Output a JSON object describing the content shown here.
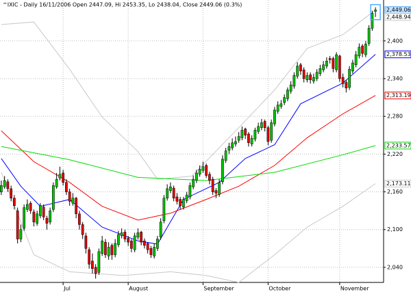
{
  "chart_data": {
    "type": "candlestick",
    "title": "^IXIC - Daily 16/11/2006 Open 2447.09, Hi 2453.35, Lo 2438.04, Close 2449.06 (0.3%)",
    "ylim": [
      2016,
      2465
    ],
    "xlim": [
      -0.4,
      117.5
    ],
    "yticks": [
      {
        "value": 2400,
        "label": "2,400"
      },
      {
        "value": 2340,
        "label": "2,340"
      },
      {
        "value": 2280,
        "label": "2,280"
      },
      {
        "value": 2220,
        "label": "2,220"
      },
      {
        "value": 2160,
        "label": "2,160"
      },
      {
        "value": 2100,
        "label": "2,100"
      },
      {
        "value": 2040,
        "label": "2,040"
      }
    ],
    "xticks": [
      {
        "value": 19,
        "label": "Jul"
      },
      {
        "value": 39,
        "label": "August"
      },
      {
        "value": 62,
        "label": "September"
      },
      {
        "value": 82,
        "label": "October"
      },
      {
        "value": 104,
        "label": "November"
      }
    ],
    "grid": true,
    "up_color": "#00c000",
    "down_color": "#e00000",
    "close_label": "2,449.06",
    "candles": [
      [
        2160,
        2178,
        2155,
        2170
      ],
      [
        2168,
        2185,
        2165,
        2178
      ],
      [
        2176,
        2180,
        2160,
        2165
      ],
      [
        2165,
        2170,
        2145,
        2150
      ],
      [
        2150,
        2155,
        2132,
        2138
      ],
      [
        2130,
        2135,
        2078,
        2085
      ],
      [
        2085,
        2108,
        2080,
        2100
      ],
      [
        2102,
        2140,
        2098,
        2135
      ],
      [
        2132,
        2148,
        2128,
        2140
      ],
      [
        2142,
        2145,
        2125,
        2130
      ],
      [
        2128,
        2132,
        2105,
        2112
      ],
      [
        2110,
        2130,
        2106,
        2125
      ],
      [
        2122,
        2142,
        2118,
        2138
      ],
      [
        2136,
        2140,
        2115,
        2120
      ],
      [
        2118,
        2122,
        2100,
        2110
      ],
      [
        2112,
        2135,
        2108,
        2130
      ],
      [
        2132,
        2175,
        2128,
        2170
      ],
      [
        2168,
        2190,
        2165,
        2180
      ],
      [
        2182,
        2200,
        2178,
        2188
      ],
      [
        2190,
        2195,
        2170,
        2175
      ],
      [
        2175,
        2180,
        2155,
        2160
      ],
      [
        2160,
        2165,
        2138,
        2145
      ],
      [
        2142,
        2158,
        2138,
        2150
      ],
      [
        2150,
        2152,
        2118,
        2125
      ],
      [
        2125,
        2130,
        2100,
        2108
      ],
      [
        2108,
        2112,
        2085,
        2092
      ],
      [
        2090,
        2095,
        2062,
        2070
      ],
      [
        2068,
        2072,
        2038,
        2045
      ],
      [
        2050,
        2062,
        2030,
        2038
      ],
      [
        2040,
        2045,
        2022,
        2030
      ],
      [
        2032,
        2070,
        2028,
        2065
      ],
      [
        2062,
        2090,
        2058,
        2082
      ],
      [
        2080,
        2085,
        2055,
        2060
      ],
      [
        2058,
        2080,
        2052,
        2072
      ],
      [
        2075,
        2078,
        2052,
        2060
      ],
      [
        2060,
        2085,
        2056,
        2078
      ],
      [
        2076,
        2098,
        2072,
        2092
      ],
      [
        2090,
        2102,
        2086,
        2095
      ],
      [
        2096,
        2100,
        2080,
        2085
      ],
      [
        2086,
        2090,
        2074,
        2080
      ],
      [
        2082,
        2085,
        2064,
        2070
      ],
      [
        2068,
        2095,
        2064,
        2090
      ],
      [
        2088,
        2102,
        2084,
        2095
      ],
      [
        2096,
        2098,
        2075,
        2080
      ],
      [
        2082,
        2086,
        2070,
        2075
      ],
      [
        2078,
        2080,
        2062,
        2068
      ],
      [
        2070,
        2074,
        2055,
        2060
      ],
      [
        2058,
        2078,
        2054,
        2072
      ],
      [
        2070,
        2090,
        2066,
        2085
      ],
      [
        2088,
        2118,
        2084,
        2112
      ],
      [
        2114,
        2155,
        2110,
        2150
      ],
      [
        2150,
        2172,
        2146,
        2165
      ],
      [
        2162,
        2175,
        2158,
        2168
      ],
      [
        2166,
        2170,
        2145,
        2150
      ],
      [
        2152,
        2158,
        2140,
        2145
      ],
      [
        2148,
        2152,
        2132,
        2138
      ],
      [
        2136,
        2152,
        2132,
        2148
      ],
      [
        2146,
        2160,
        2142,
        2155
      ],
      [
        2152,
        2175,
        2148,
        2170
      ],
      [
        2168,
        2186,
        2164,
        2180
      ],
      [
        2178,
        2195,
        2174,
        2190
      ],
      [
        2188,
        2202,
        2184,
        2196
      ],
      [
        2194,
        2208,
        2190,
        2200
      ],
      [
        2202,
        2205,
        2182,
        2186
      ],
      [
        2188,
        2192,
        2172,
        2178
      ],
      [
        2180,
        2184,
        2155,
        2160
      ],
      [
        2162,
        2166,
        2150,
        2158
      ],
      [
        2156,
        2180,
        2152,
        2175
      ],
      [
        2176,
        2218,
        2172,
        2212
      ],
      [
        2210,
        2230,
        2206,
        2225
      ],
      [
        2226,
        2238,
        2220,
        2232
      ],
      [
        2230,
        2245,
        2226,
        2238
      ],
      [
        2236,
        2248,
        2232,
        2240
      ],
      [
        2242,
        2255,
        2238,
        2248
      ],
      [
        2246,
        2264,
        2242,
        2258
      ],
      [
        2260,
        2262,
        2244,
        2250
      ],
      [
        2252,
        2255,
        2232,
        2238
      ],
      [
        2236,
        2250,
        2232,
        2245
      ],
      [
        2244,
        2262,
        2240,
        2258
      ],
      [
        2256,
        2270,
        2252,
        2264
      ],
      [
        2262,
        2276,
        2258,
        2270
      ],
      [
        2272,
        2275,
        2256,
        2262
      ],
      [
        2262,
        2265,
        2234,
        2240
      ],
      [
        2242,
        2275,
        2238,
        2270
      ],
      [
        2268,
        2295,
        2264,
        2290
      ],
      [
        2288,
        2304,
        2284,
        2298
      ],
      [
        2296,
        2306,
        2292,
        2300
      ],
      [
        2302,
        2315,
        2298,
        2310
      ],
      [
        2308,
        2326,
        2304,
        2322
      ],
      [
        2320,
        2336,
        2316,
        2330
      ],
      [
        2328,
        2350,
        2324,
        2345
      ],
      [
        2344,
        2366,
        2340,
        2360
      ],
      [
        2362,
        2365,
        2346,
        2352
      ],
      [
        2354,
        2358,
        2334,
        2340
      ],
      [
        2338,
        2350,
        2334,
        2345
      ],
      [
        2346,
        2350,
        2332,
        2338
      ],
      [
        2336,
        2348,
        2332,
        2342
      ],
      [
        2340,
        2355,
        2336,
        2350
      ],
      [
        2348,
        2362,
        2344,
        2356
      ],
      [
        2354,
        2368,
        2350,
        2362
      ],
      [
        2360,
        2374,
        2356,
        2368
      ],
      [
        2372,
        2376,
        2364,
        2370
      ],
      [
        2372,
        2375,
        2350,
        2356
      ],
      [
        2354,
        2382,
        2350,
        2378
      ],
      [
        2376,
        2378,
        2335,
        2340
      ],
      [
        2342,
        2348,
        2326,
        2332
      ],
      [
        2334,
        2338,
        2318,
        2325
      ],
      [
        2326,
        2360,
        2322,
        2355
      ],
      [
        2352,
        2370,
        2348,
        2365
      ],
      [
        2362,
        2384,
        2358,
        2378
      ],
      [
        2376,
        2396,
        2372,
        2390
      ],
      [
        2392,
        2395,
        2374,
        2380
      ],
      [
        2378,
        2400,
        2374,
        2395
      ],
      [
        2396,
        2425,
        2392,
        2420
      ],
      [
        2420,
        2448,
        2416,
        2444
      ],
      [
        2447.09,
        2453.35,
        2438.04,
        2449.06
      ]
    ],
    "series": [
      {
        "color": "#c8c8c8",
        "x": [
          0,
          10,
          21,
          31,
          42,
          48,
          58.5,
          73,
          84,
          94,
          105,
          115
        ],
        "values": [
          2426,
          2430,
          2355,
          2279,
          2224,
          2180,
          2185,
          2262,
          2322,
          2388,
          2410,
          2448.94
        ],
        "last_label": "2,448.94"
      },
      {
        "color": "#c8c8c8",
        "x": [
          0,
          10,
          21,
          37.5,
          52,
          63,
          73,
          84,
          94,
          105,
          115
        ],
        "values": [
          2191,
          2060,
          2033,
          2027,
          2033,
          2027,
          2016,
          2060,
          2104,
          2137,
          2173.11
        ],
        "last_label": "2,173.11"
      },
      {
        "color": "#0000ff",
        "x": [
          0,
          6,
          12,
          21,
          31,
          42,
          48,
          56,
          67,
          75,
          84,
          92,
          105,
          115
        ],
        "values": [
          2213,
          2169,
          2137,
          2148,
          2104,
          2082,
          2077,
          2148,
          2175,
          2213,
          2235,
          2300,
          2333,
          2378.53
        ],
        "last_label": "2,378.53"
      },
      {
        "color": "#ff0000",
        "x": [
          0,
          10,
          21,
          31,
          42,
          52,
          63,
          73,
          84,
          94,
          105,
          115
        ],
        "values": [
          2257,
          2208,
          2175,
          2137,
          2115,
          2126,
          2148,
          2169,
          2202,
          2246,
          2284,
          2313.19
        ],
        "last_label": "2,313.19"
      },
      {
        "color": "#00dd00",
        "x": [
          0,
          21,
          42,
          63,
          84,
          105,
          115
        ],
        "values": [
          2232,
          2211,
          2183,
          2178,
          2191,
          2219,
          2233.57
        ],
        "last_label": "2,233.57"
      }
    ]
  }
}
